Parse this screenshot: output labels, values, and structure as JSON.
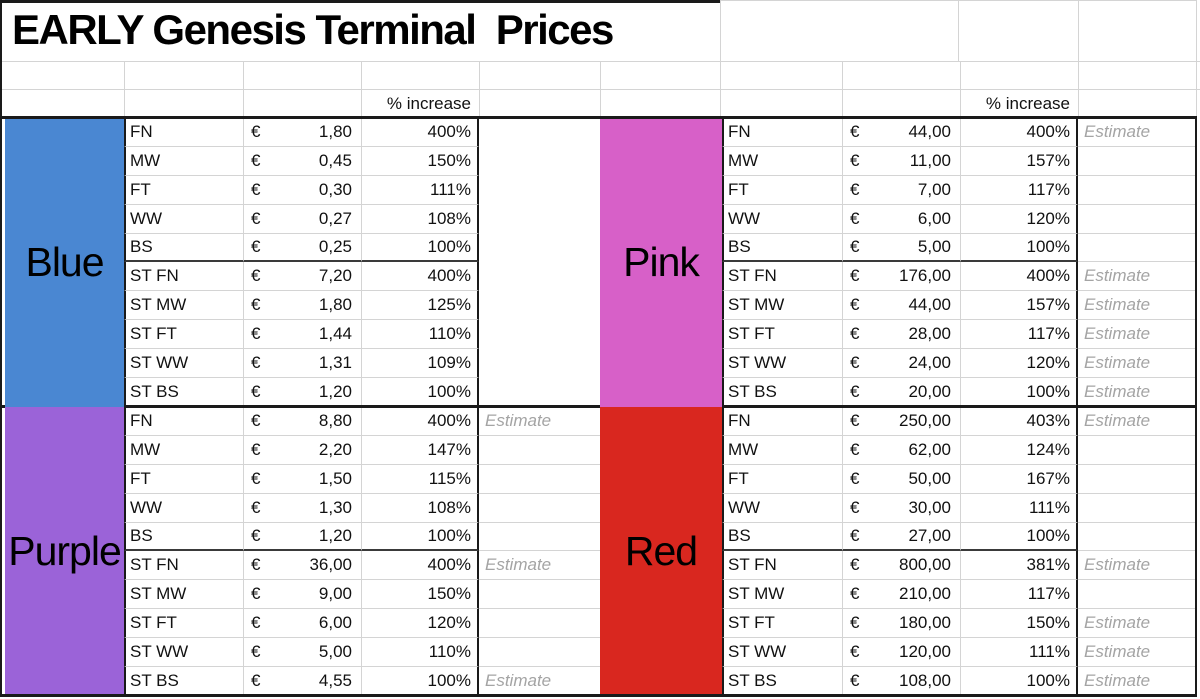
{
  "title": "EARLY Genesis Terminal  Prices",
  "pct_header": "% increase",
  "currency_symbol": "€",
  "colors": {
    "gridline": "#d4d4d4",
    "table_border": "#1a1a1a",
    "heavy_rule": "#3a3a3a",
    "estimate_text": "#a4a4a4",
    "blue": "#4a87d2",
    "pink": "#d760c8",
    "purple": "#9b63d8",
    "red": "#d9271f"
  },
  "sections": [
    {
      "name": "Blue",
      "color": "#4a87d2",
      "side": "left",
      "slot": "top",
      "rows": [
        {
          "item": "FN",
          "price": "1,80",
          "pct": "400%",
          "note": ""
        },
        {
          "item": "MW",
          "price": "0,45",
          "pct": "150%",
          "note": ""
        },
        {
          "item": "FT",
          "price": "0,30",
          "pct": "111%",
          "note": ""
        },
        {
          "item": "WW",
          "price": "0,27",
          "pct": "108%",
          "note": ""
        },
        {
          "item": "BS",
          "price": "0,25",
          "pct": "100%",
          "note": ""
        },
        {
          "item": "ST FN",
          "price": "7,20",
          "pct": "400%",
          "note": ""
        },
        {
          "item": "ST MW",
          "price": "1,80",
          "pct": "125%",
          "note": ""
        },
        {
          "item": "ST FT",
          "price": "1,44",
          "pct": "110%",
          "note": ""
        },
        {
          "item": "ST WW",
          "price": "1,31",
          "pct": "109%",
          "note": ""
        },
        {
          "item": "ST BS",
          "price": "1,20",
          "pct": "100%",
          "note": ""
        }
      ]
    },
    {
      "name": "Pink",
      "color": "#d760c8",
      "side": "right",
      "slot": "top",
      "rows": [
        {
          "item": "FN",
          "price": "44,00",
          "pct": "400%",
          "note": "Estimate"
        },
        {
          "item": "MW",
          "price": "11,00",
          "pct": "157%",
          "note": ""
        },
        {
          "item": "FT",
          "price": "7,00",
          "pct": "117%",
          "note": ""
        },
        {
          "item": "WW",
          "price": "6,00",
          "pct": "120%",
          "note": ""
        },
        {
          "item": "BS",
          "price": "5,00",
          "pct": "100%",
          "note": ""
        },
        {
          "item": "ST FN",
          "price": "176,00",
          "pct": "400%",
          "note": "Estimate"
        },
        {
          "item": "ST MW",
          "price": "44,00",
          "pct": "157%",
          "note": "Estimate"
        },
        {
          "item": "ST FT",
          "price": "28,00",
          "pct": "117%",
          "note": "Estimate"
        },
        {
          "item": "ST WW",
          "price": "24,00",
          "pct": "120%",
          "note": "Estimate"
        },
        {
          "item": "ST BS",
          "price": "20,00",
          "pct": "100%",
          "note": "Estimate"
        }
      ]
    },
    {
      "name": "Purple",
      "color": "#9b63d8",
      "side": "left",
      "slot": "bottom",
      "rows": [
        {
          "item": "FN",
          "price": "8,80",
          "pct": "400%",
          "note": "Estimate"
        },
        {
          "item": "MW",
          "price": "2,20",
          "pct": "147%",
          "note": ""
        },
        {
          "item": "FT",
          "price": "1,50",
          "pct": "115%",
          "note": ""
        },
        {
          "item": "WW",
          "price": "1,30",
          "pct": "108%",
          "note": ""
        },
        {
          "item": "BS",
          "price": "1,20",
          "pct": "100%",
          "note": ""
        },
        {
          "item": "ST FN",
          "price": "36,00",
          "pct": "400%",
          "note": "Estimate"
        },
        {
          "item": "ST MW",
          "price": "9,00",
          "pct": "150%",
          "note": ""
        },
        {
          "item": "ST FT",
          "price": "6,00",
          "pct": "120%",
          "note": ""
        },
        {
          "item": "ST WW",
          "price": "5,00",
          "pct": "110%",
          "note": ""
        },
        {
          "item": "ST BS",
          "price": "4,55",
          "pct": "100%",
          "note": "Estimate"
        }
      ]
    },
    {
      "name": "Red",
      "color": "#d9271f",
      "side": "right",
      "slot": "bottom",
      "rows": [
        {
          "item": "FN",
          "price": "250,00",
          "pct": "403%",
          "note": "Estimate"
        },
        {
          "item": "MW",
          "price": "62,00",
          "pct": "124%",
          "note": ""
        },
        {
          "item": "FT",
          "price": "50,00",
          "pct": "167%",
          "note": ""
        },
        {
          "item": "WW",
          "price": "30,00",
          "pct": "111%",
          "note": ""
        },
        {
          "item": "BS",
          "price": "27,00",
          "pct": "100%",
          "note": ""
        },
        {
          "item": "ST FN",
          "price": "800,00",
          "pct": "381%",
          "note": "Estimate"
        },
        {
          "item": "ST MW",
          "price": "210,00",
          "pct": "117%",
          "note": ""
        },
        {
          "item": "ST FT",
          "price": "180,00",
          "pct": "150%",
          "note": "Estimate"
        },
        {
          "item": "ST WW",
          "price": "120,00",
          "pct": "111%",
          "note": "Estimate"
        },
        {
          "item": "ST BS",
          "price": "108,00",
          "pct": "100%",
          "note": "Estimate"
        }
      ]
    }
  ]
}
